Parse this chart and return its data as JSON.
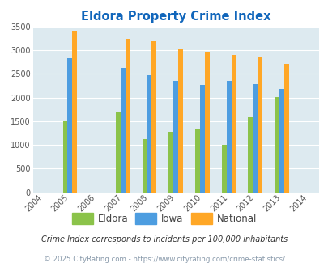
{
  "title": "Eldora Property Crime Index",
  "all_years": [
    2004,
    2005,
    2006,
    2007,
    2008,
    2009,
    2010,
    2011,
    2012,
    2013,
    2014
  ],
  "data_years": [
    2005,
    2007,
    2008,
    2009,
    2010,
    2011,
    2012,
    2013
  ],
  "eldora": [
    1500,
    1680,
    1120,
    1270,
    1330,
    1010,
    1580,
    2010
  ],
  "iowa": [
    2830,
    2630,
    2470,
    2360,
    2260,
    2360,
    2280,
    2180
  ],
  "national": [
    3410,
    3250,
    3200,
    3040,
    2970,
    2900,
    2860,
    2720
  ],
  "color_eldora": "#8bc34a",
  "color_iowa": "#4d9de0",
  "color_national": "#ffa726",
  "bg_color": "#ddeaf0",
  "title_color": "#1166bb",
  "ylim": [
    0,
    3500
  ],
  "yticks": [
    0,
    500,
    1000,
    1500,
    2000,
    2500,
    3000,
    3500
  ],
  "footnote1": "Crime Index corresponds to incidents per 100,000 inhabitants",
  "footnote2": "© 2025 CityRating.com - https://www.cityrating.com/crime-statistics/",
  "legend_labels": [
    "Eldora",
    "Iowa",
    "National"
  ]
}
